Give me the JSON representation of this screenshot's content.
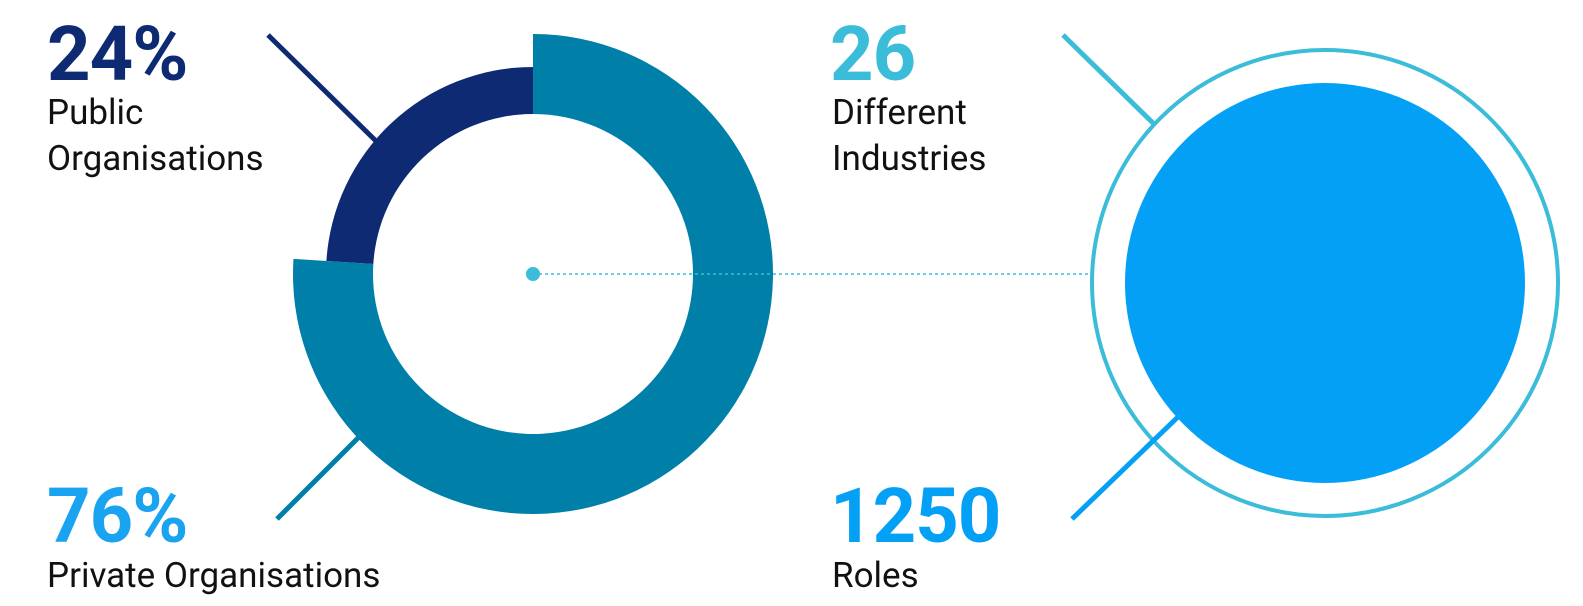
{
  "chart_data": [
    {
      "type": "pie",
      "categories": [
        "Public Organisations",
        "Private Organisations"
      ],
      "values": [
        24,
        76
      ],
      "value_labels": [
        "24%",
        "76%"
      ],
      "colors": [
        "#0d2a73",
        "#0080a8"
      ],
      "label_colors": [
        "#0d2a73",
        "#1aa3f0"
      ]
    },
    {
      "type": "stats",
      "categories": [
        "Different Industries",
        "Roles"
      ],
      "values": [
        26,
        1250
      ],
      "colors": [
        "#3bbcd9",
        "#03a0f5"
      ]
    }
  ]
}
